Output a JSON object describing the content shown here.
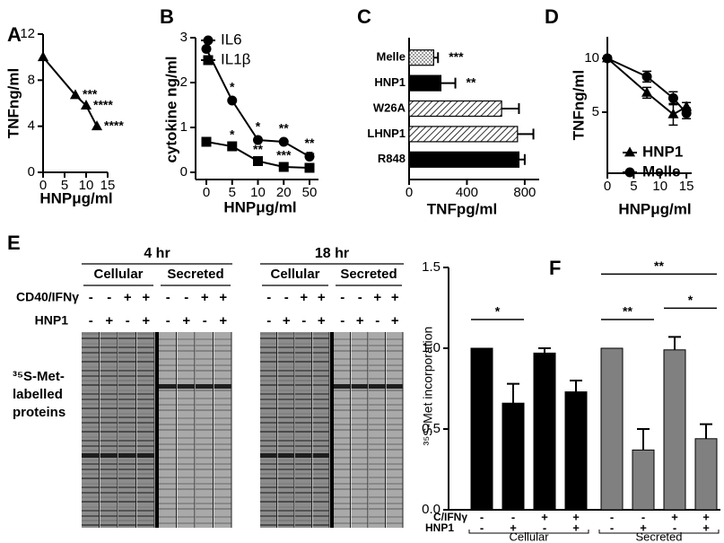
{
  "chart_data": [
    {
      "type": "line",
      "label": "A",
      "x": [
        0,
        7.5,
        10,
        12.5
      ],
      "values": [
        10,
        6.7,
        5.8,
        4.0
      ],
      "labels": [
        null,
        "***",
        "****",
        "****"
      ],
      "marker": "triangle",
      "color": "#000000",
      "xlim": [
        0,
        15
      ],
      "xticks": [
        0,
        5,
        10,
        15
      ],
      "ylim": [
        0,
        12
      ],
      "yticks": [
        0,
        4,
        8,
        12
      ],
      "xlabel": "HNPμg/ml",
      "ylabel": "TNFng/ml"
    },
    {
      "type": "line",
      "label": "B",
      "categories": [
        "0",
        "5",
        "10",
        "20",
        "50"
      ],
      "series": [
        {
          "name": "IL6",
          "color": "#000000",
          "marker": "circle",
          "values": [
            2.75,
            1.6,
            0.72,
            0.68,
            0.35
          ],
          "labels": [
            null,
            "*",
            "*",
            "**",
            "**"
          ]
        },
        {
          "name": "IL1β",
          "color": "#000000",
          "marker": "square",
          "values": [
            0.68,
            0.58,
            0.25,
            0.12,
            0.1
          ],
          "labels": [
            null,
            "*",
            "**",
            "***",
            "**"
          ]
        }
      ],
      "ylim": [
        0,
        3
      ],
      "yticks": [
        0,
        1,
        2,
        3
      ],
      "xlabel": "HNPμg/ml",
      "ylabel": "cytokine ng/ml"
    },
    {
      "type": "bar",
      "orientation": "horizontal",
      "label": "C",
      "categories": [
        "Melle",
        "HNP1",
        "W26A",
        "LHNP1",
        "R848"
      ],
      "values": [
        170,
        220,
        640,
        750,
        760
      ],
      "errors": [
        30,
        100,
        120,
        110,
        40
      ],
      "labels": [
        "***",
        "**",
        null,
        null,
        null
      ],
      "fills": [
        "dots",
        "solid",
        "hatch",
        "hatch",
        "solid"
      ],
      "color": "#000000",
      "xlim": [
        0,
        900
      ],
      "xticks": [
        0,
        400,
        800
      ],
      "xlabel": "TNFpg/ml"
    },
    {
      "type": "line",
      "label": "D",
      "x": [
        0,
        7.5,
        12.5,
        15
      ],
      "series": [
        {
          "name": "HNP1",
          "color": "#000000",
          "marker": "triangle",
          "values": [
            10,
            6.8,
            4.8,
            5.5
          ],
          "errors": [
            0.2,
            0.5,
            1.0,
            0.4
          ]
        },
        {
          "name": "Melle",
          "color": "#000000",
          "marker": "circle",
          "values": [
            10,
            8.3,
            6.3,
            4.9
          ],
          "errors": [
            0.2,
            0.5,
            0.6,
            0.5
          ]
        }
      ],
      "xlim": [
        0,
        16
      ],
      "xticks": [
        0,
        5,
        10,
        15
      ],
      "ylim": [
        0,
        12
      ],
      "yticks": [
        5,
        10
      ],
      "xlabel": "HNPμg/ml",
      "ylabel": "TNFng/ml"
    },
    {
      "type": "bar",
      "orientation": "vertical",
      "label": "F",
      "values": [
        1.0,
        0.66,
        0.97,
        0.73,
        1.0,
        0.37,
        0.99,
        0.44
      ],
      "errors": [
        0,
        0.12,
        0.03,
        0.07,
        0,
        0.13,
        0.08,
        0.09
      ],
      "colors": [
        "#000000",
        "#000000",
        "#000000",
        "#000000",
        "#808080",
        "#808080",
        "#808080",
        "#808080"
      ],
      "rows": [
        {
          "name": "C/IFNγ",
          "signs": [
            "-",
            "-",
            "+",
            "+",
            "-",
            "-",
            "+",
            "+"
          ]
        },
        {
          "name": "HNP1",
          "signs": [
            "-",
            "+",
            "-",
            "+",
            "-",
            "+",
            "-",
            "+"
          ]
        }
      ],
      "groups": [
        "Cellular",
        "Secreted"
      ],
      "brackets": [
        {
          "from": 0,
          "to": 1,
          "text": "*"
        },
        {
          "from": 4,
          "to": 5,
          "text": "**"
        },
        {
          "from": 6,
          "to": 7,
          "text": "*"
        },
        {
          "from": 4,
          "to": 7,
          "text": "**"
        }
      ],
      "ylim": [
        0,
        1.5
      ],
      "yticks": [
        {
          "value": 0,
          "label": "0.0"
        },
        0.5,
        {
          "value": 1,
          "label": "1.0"
        },
        1.5
      ],
      "ylabel": "³⁵S-Met incorporation"
    }
  ],
  "gel": {
    "label": "E",
    "blocks": [
      {
        "time": "4 hr",
        "groups": [
          "Cellular",
          "Secreted"
        ]
      },
      {
        "time": "18 hr",
        "groups": [
          "Cellular",
          "Secreted"
        ]
      }
    ],
    "rows": [
      {
        "name": "CD40/IFNγ",
        "signs": [
          "-",
          "-",
          "+",
          "+",
          "-",
          "-",
          "+",
          "+",
          "-",
          "-",
          "+",
          "+",
          "-",
          "-",
          "+",
          "+"
        ]
      },
      {
        "name": "HNP1",
        "signs": [
          "-",
          "+",
          "-",
          "+",
          "-",
          "+",
          "-",
          "+",
          "-",
          "+",
          "-",
          "+",
          "-",
          "+",
          "-",
          "+"
        ]
      }
    ],
    "ylabel": [
      "³⁵S-Met-",
      "labelled",
      "proteins"
    ]
  }
}
